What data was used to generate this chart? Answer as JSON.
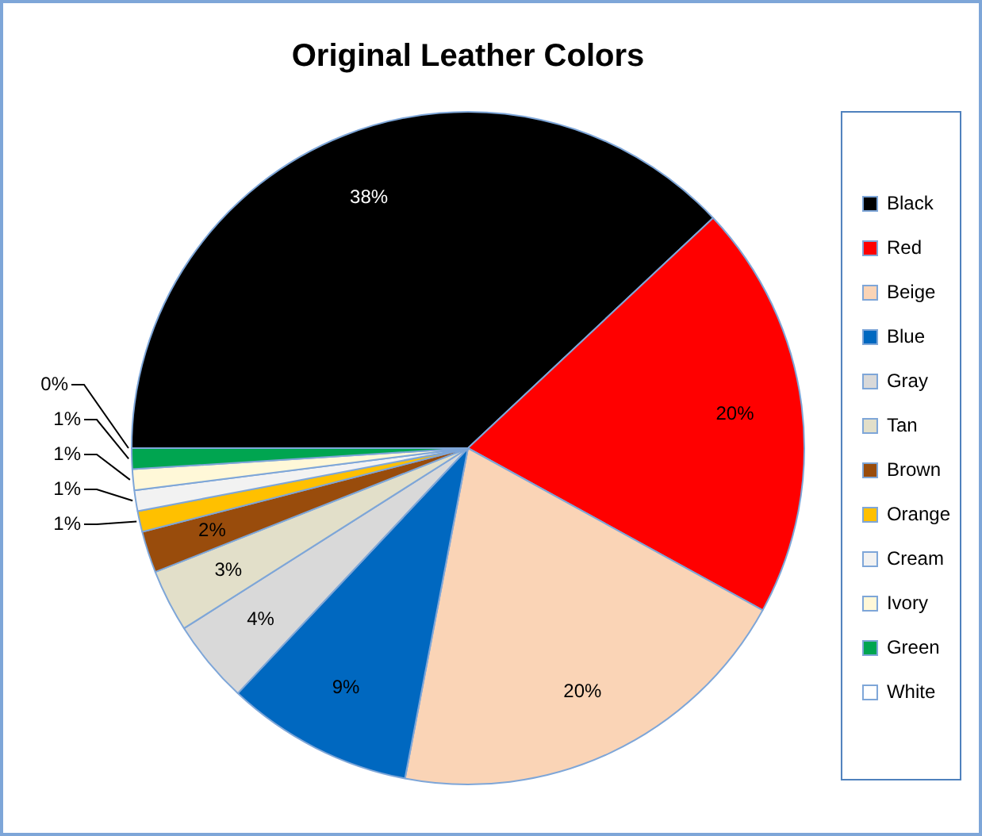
{
  "chart_data": {
    "type": "pie",
    "title": "Original Leather Colors",
    "categories": [
      "Black",
      "Red",
      "Beige",
      "Blue",
      "Gray",
      "Tan",
      "Brown",
      "Orange",
      "Cream",
      "Ivory",
      "Green",
      "White"
    ],
    "values": [
      38,
      20,
      20,
      9,
      4,
      3,
      2,
      1,
      1,
      1,
      1,
      0
    ],
    "value_labels": [
      "38%",
      "20%",
      "20%",
      "9%",
      "4%",
      "3%",
      "2%",
      "1%",
      "1%",
      "1%",
      "1%",
      "0%"
    ],
    "colors": [
      "#000000",
      "#ff0000",
      "#fad4b6",
      "#0068c0",
      "#d9d9d9",
      "#e2dfc9",
      "#994c0c",
      "#ffc000",
      "#f2f2f2",
      "#fff8d8",
      "#00a550",
      "#ffffff"
    ],
    "legend": "right"
  }
}
